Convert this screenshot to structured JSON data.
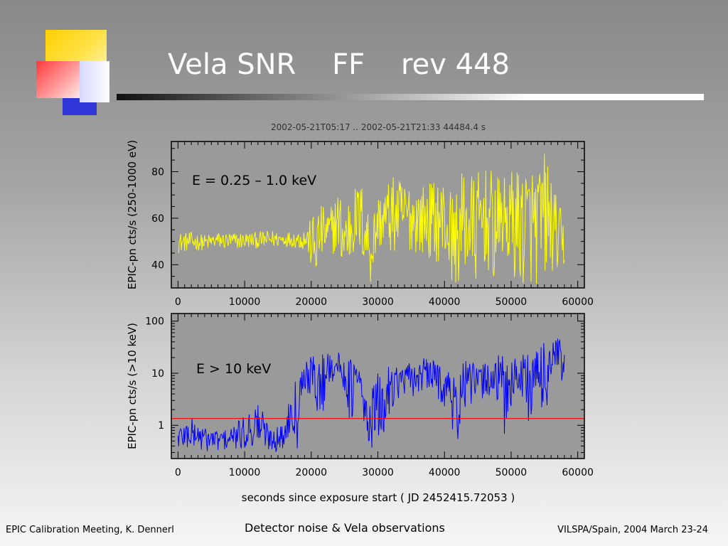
{
  "slide": {
    "title": "Vela SNR    FF    rev 448",
    "footer_left": "EPIC Calibration Meeting, K. Dennerl",
    "footer_center": "Detector noise & Vela observations",
    "footer_right": "VILSPA/Spain, 2004 March 23-24"
  },
  "colors": {
    "background_top": "#888888",
    "background_bottom": "#f6f6f6",
    "plot_background": "#9a9a9a",
    "soft_series": "#ffff00",
    "hard_series": "#0000ff",
    "threshold_line": "#ff0000"
  },
  "chart_data": [
    {
      "type": "line",
      "title": "2002-05-21T05:17 .. 2002-05-21T21:33     44484.4 s",
      "annotation": "E = 0.25 – 1.0 keV",
      "xlabel": "",
      "ylabel": "EPIC-pn cts/s   (250-1000 eV)",
      "xlim": [
        -1000,
        61000
      ],
      "ylim": [
        30,
        93
      ],
      "xticks": [
        0,
        10000,
        20000,
        30000,
        40000,
        50000,
        60000
      ],
      "yticks": [
        40,
        60,
        80
      ],
      "grid": false,
      "series": [
        {
          "color": "#ffff00",
          "x": [
            0,
            2000,
            4000,
            6000,
            8000,
            10000,
            12000,
            14000,
            16000,
            18000,
            19500,
            20500,
            21500,
            22500,
            24000,
            25000,
            26500,
            27500,
            29000,
            30000,
            31000,
            32000,
            34000,
            36000,
            38000,
            40000,
            41500,
            43000,
            44500,
            46000,
            47500,
            48500,
            50000,
            51500,
            53000,
            54000,
            55000,
            55500,
            56500,
            57500,
            58000
          ],
          "low": [
            45,
            46,
            46,
            47,
            46,
            47,
            47,
            47,
            48,
            47,
            45,
            30,
            42,
            44,
            45,
            33,
            45,
            43,
            30,
            47,
            46,
            44,
            46,
            45,
            42,
            40,
            30,
            35,
            30,
            40,
            30,
            45,
            35,
            30,
            32,
            30,
            36,
            30,
            40,
            30,
            38
          ],
          "high": [
            54,
            54,
            53,
            54,
            54,
            54,
            54,
            55,
            54,
            55,
            57,
            64,
            66,
            63,
            72,
            69,
            74,
            76,
            62,
            70,
            74,
            78,
            77,
            74,
            76,
            78,
            70,
            83,
            79,
            82,
            80,
            76,
            81,
            83,
            84,
            82,
            89,
            86,
            72,
            64,
            58
          ]
        }
      ]
    },
    {
      "type": "line",
      "annotation": "E > 10 keV",
      "xlabel": "seconds since exposure start  ( JD 2452415.72053 )",
      "ylabel": "EPIC-pn cts/s   (>10 keV)",
      "xlim": [
        -1000,
        61000
      ],
      "ylim": [
        0.23,
        140
      ],
      "yscale": "log",
      "xticks": [
        0,
        10000,
        20000,
        30000,
        40000,
        50000,
        60000
      ],
      "yticks": [
        1,
        10,
        100
      ],
      "grid": false,
      "threshold": 1.35,
      "series": [
        {
          "color": "#0000ff",
          "x": [
            0,
            2000,
            4000,
            6000,
            8000,
            10000,
            12000,
            13500,
            15000,
            16000,
            17000,
            18000,
            19000,
            20000,
            21500,
            23000,
            24500,
            26000,
            27000,
            28000,
            29000,
            30000,
            31000,
            32000,
            33000,
            35000,
            37000,
            39000,
            41000,
            42000,
            43000,
            45000,
            47000,
            49000,
            51000,
            52000,
            53000,
            54000,
            55000,
            56000,
            57000,
            58000
          ],
          "low": [
            0.3,
            0.3,
            0.3,
            0.3,
            0.3,
            0.3,
            0.3,
            0.3,
            0.3,
            0.3,
            0.8,
            0.3,
            5,
            3,
            0.3,
            6,
            5,
            0.3,
            4,
            0.3,
            0.3,
            0.3,
            0.3,
            2,
            3,
            3,
            4,
            3,
            0.7,
            0.3,
            2,
            2,
            3,
            0.3,
            3,
            2,
            0.3,
            3,
            0.3,
            4,
            6,
            0.3
          ],
          "high": [
            1.0,
            1.4,
            0.9,
            0.8,
            0.9,
            1.5,
            3.0,
            1.0,
            1.0,
            1.0,
            4,
            12,
            15,
            22,
            25,
            35,
            22,
            20,
            15,
            4,
            5,
            10,
            9,
            18,
            14,
            16,
            20,
            18,
            12,
            6,
            18,
            15,
            20,
            25,
            20,
            30,
            35,
            25,
            55,
            48,
            55,
            50
          ]
        }
      ]
    }
  ]
}
